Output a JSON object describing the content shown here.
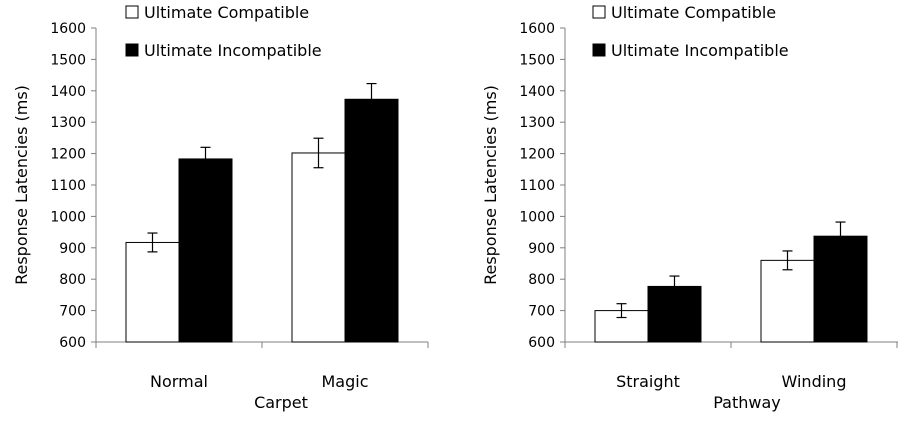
{
  "chart_data": [
    {
      "type": "bar",
      "xlabel": "Carpet",
      "ylabel": "Response Latencies (ms)",
      "ylim": [
        600,
        1600
      ],
      "yticks": [
        600,
        700,
        800,
        900,
        1000,
        1100,
        1200,
        1300,
        1400,
        1500,
        1600
      ],
      "categories": [
        "Normal",
        "Magic"
      ],
      "legend_position": "top-left",
      "grid": false,
      "series": [
        {
          "name": "Ultimate Compatible",
          "color": "#ffffff",
          "values": [
            917,
            1202
          ],
          "errors": [
            30,
            47
          ]
        },
        {
          "name": "Ultimate Incompatible",
          "color": "#000000",
          "values": [
            1183,
            1373
          ],
          "errors": [
            37,
            50
          ]
        }
      ]
    },
    {
      "type": "bar",
      "xlabel": "Pathway",
      "ylabel": "Response Latencies (ms)",
      "ylim": [
        600,
        1600
      ],
      "yticks": [
        600,
        700,
        800,
        900,
        1000,
        1100,
        1200,
        1300,
        1400,
        1500,
        1600
      ],
      "categories": [
        "Straight",
        "Winding"
      ],
      "legend_position": "top-left",
      "grid": false,
      "series": [
        {
          "name": "Ultimate Compatible",
          "color": "#ffffff",
          "values": [
            700,
            860
          ],
          "errors": [
            22,
            30
          ]
        },
        {
          "name": "Ultimate Incompatible",
          "color": "#000000",
          "values": [
            777,
            937
          ],
          "errors": [
            33,
            45
          ]
        }
      ]
    }
  ]
}
